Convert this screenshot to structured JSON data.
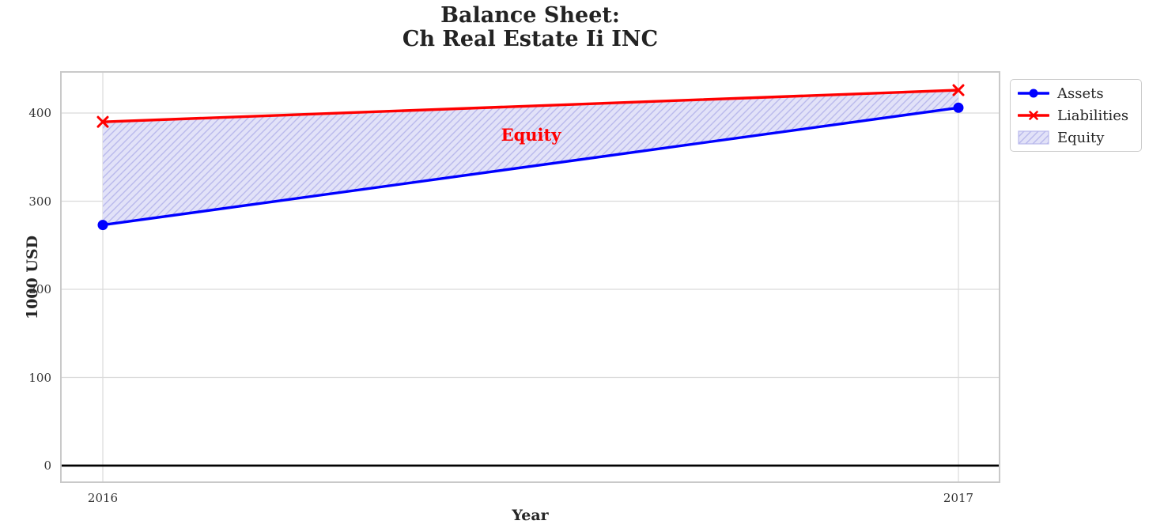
{
  "figure": {
    "title_line1": "Balance Sheet:",
    "title_line2": "Ch Real Estate Ii INC"
  },
  "axes": {
    "xlabel": "Year",
    "ylabel": "1000 USD",
    "xticklabels": [
      "2016",
      "2017"
    ],
    "yticklabels": [
      "0",
      "100",
      "200",
      "300",
      "400"
    ]
  },
  "legend": {
    "items": [
      {
        "label": "Assets",
        "type": "line-circle",
        "color": "#0000ff"
      },
      {
        "label": "Liabilities",
        "type": "line-x",
        "color": "#ff0000"
      },
      {
        "label": "Equity",
        "type": "hatch-patch",
        "fill": "#e2e2f8",
        "hatch": "#b9b9ec"
      }
    ]
  },
  "chart_data": {
    "type": "line",
    "title": "Balance Sheet:\nCh Real Estate Ii INC",
    "xlabel": "Year",
    "ylabel": "1000 USD",
    "x": [
      2016,
      2017
    ],
    "series": [
      {
        "name": "Assets",
        "values": [
          273,
          406
        ],
        "color": "#0000ff",
        "marker": "circle",
        "linewidth": 3.4
      },
      {
        "name": "Liabilities",
        "values": [
          390,
          426
        ],
        "color": "#ff0000",
        "marker": "x",
        "linewidth": 3.4
      }
    ],
    "area": {
      "name": "Equity",
      "between": [
        "Liabilities",
        "Assets"
      ],
      "fill_color": "#e2e2f8",
      "hatch": "//",
      "hatch_color": "#b9b9ec"
    },
    "annotation": {
      "text": "Equity",
      "color": "#ff0000",
      "x_frac": 0.5,
      "y": 375,
      "fontsize": 21,
      "bold": true
    },
    "yticks": [
      0,
      100,
      200,
      300,
      400
    ],
    "ylim": [
      -20,
      448
    ],
    "zero_line": {
      "color": "#000000",
      "width": 2.8
    },
    "grid": true,
    "grid_color": "#dadada",
    "spine_color": "#c9c9c9",
    "legend_position": "outside upper right"
  }
}
